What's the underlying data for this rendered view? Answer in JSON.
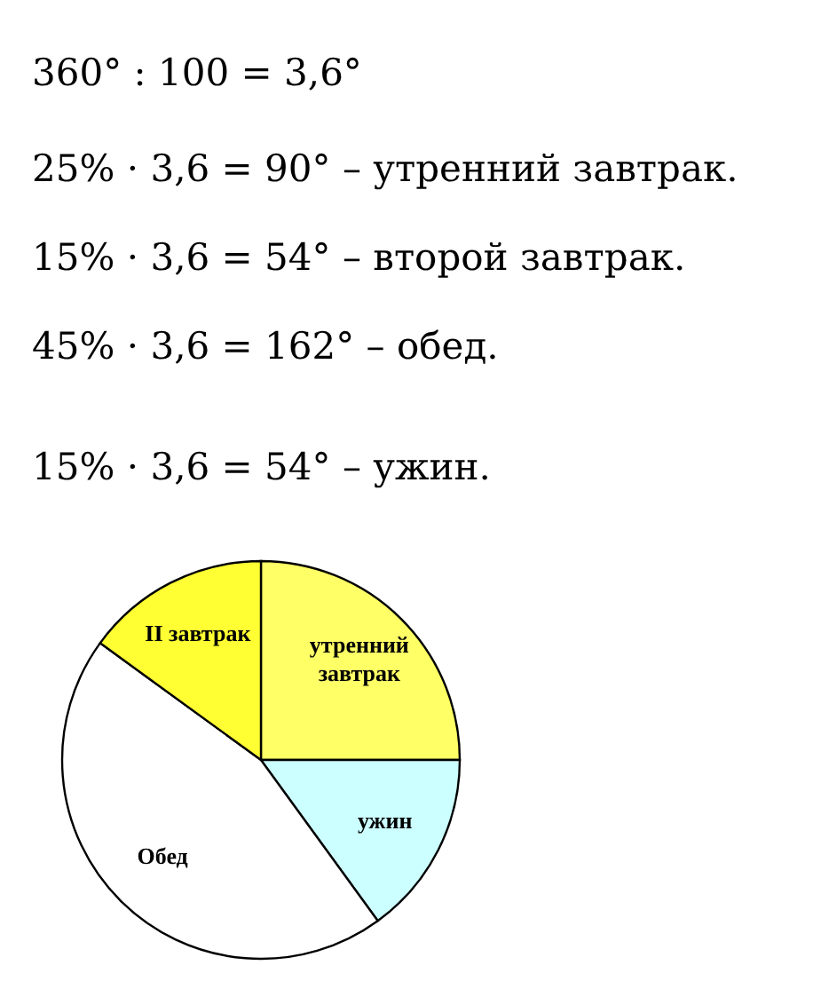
{
  "chart_data": {
    "type": "pie",
    "annotations": [
      "360° : 100 = 3,6°",
      "25% · 3,6 = 90° – утренний завтрак.",
      "15% · 3,6 = 54° – второй завтрак.",
      "45% · 3,6 = 162° – обед.",
      "15% · 3,6 = 54° – ужин."
    ],
    "categories": [
      "утренний завтрак",
      "ужин",
      "Обед",
      "II завтрак"
    ],
    "values": [
      25,
      15,
      45,
      15
    ],
    "colors": [
      "#ffff66",
      "#ccffff",
      "#ffffff",
      "#ffff33"
    ]
  }
}
